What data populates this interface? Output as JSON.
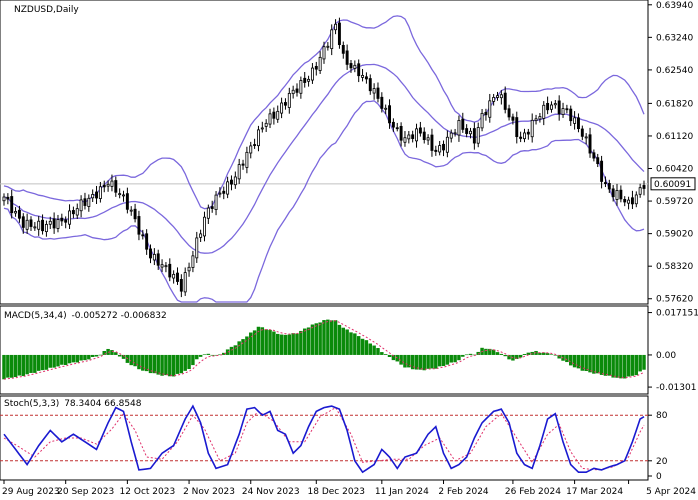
{
  "colors": {
    "background": "#ffffff",
    "frame": "#000000",
    "bollinger": "#7b68dd",
    "candle": "#000000",
    "macd_hist": "#0a8a0a",
    "macd_signal": "#e0306a",
    "stoch_main": "#1a1ad0",
    "stoch_signal": "#e0306a",
    "level_line": "#c03030",
    "price_line": "#c0c0c0",
    "current_price_bg": "#ffffff"
  },
  "chart_data": [
    {
      "type": "candlestick",
      "title": "NZDUSD,Daily",
      "ylim": [
        0.5755,
        0.64
      ],
      "y_ticks": [
        "0.63940",
        "0.63240",
        "0.62540",
        "0.61820",
        "0.61120",
        "0.60420",
        "0.59720",
        "0.59020",
        "0.58320",
        "0.57620"
      ],
      "y_tick_values": [
        0.6394,
        0.6324,
        0.6254,
        0.6182,
        0.6112,
        0.6042,
        0.5972,
        0.5902,
        0.5832,
        0.5762
      ],
      "current_price_label": "0.60091",
      "current_price": 0.60091,
      "x_ticks": [
        "29 Aug 2023",
        "20 Sep 2023",
        "12 Oct 2023",
        "2 Nov 2023",
        "24 Nov 2023",
        "18 Dec 2023",
        "11 Jan 2024",
        "2 Feb 2024",
        "26 Feb 2024",
        "17 Mar 2024",
        "5 Apr 2024"
      ],
      "x_tick_bar_index": [
        0,
        16,
        32,
        48,
        64,
        81,
        98,
        114,
        132,
        148,
        162
      ],
      "bars": 167,
      "close_path": [
        [
          0,
          0.5975
        ],
        [
          5,
          0.593
        ],
        [
          10,
          0.591
        ],
        [
          16,
          0.594
        ],
        [
          22,
          0.597
        ],
        [
          27,
          0.602
        ],
        [
          30,
          0.5985
        ],
        [
          34,
          0.593
        ],
        [
          38,
          0.586
        ],
        [
          42,
          0.582
        ],
        [
          46,
          0.579
        ],
        [
          48,
          0.584
        ],
        [
          52,
          0.593
        ],
        [
          56,
          0.599
        ],
        [
          60,
          0.603
        ],
        [
          64,
          0.608
        ],
        [
          68,
          0.615
        ],
        [
          72,
          0.6175
        ],
        [
          76,
          0.621
        ],
        [
          80,
          0.6255
        ],
        [
          84,
          0.631
        ],
        [
          86,
          0.6345
        ],
        [
          88,
          0.628
        ],
        [
          92,
          0.6255
        ],
        [
          96,
          0.62
        ],
        [
          100,
          0.615
        ],
        [
          104,
          0.6105
        ],
        [
          108,
          0.6115
        ],
        [
          112,
          0.6085
        ],
        [
          114,
          0.6095
        ],
        [
          118,
          0.613
        ],
        [
          122,
          0.611
        ],
        [
          124,
          0.616
        ],
        [
          128,
          0.62
        ],
        [
          130,
          0.617
        ],
        [
          134,
          0.611
        ],
        [
          138,
          0.6145
        ],
        [
          142,
          0.618
        ],
        [
          146,
          0.617
        ],
        [
          150,
          0.611
        ],
        [
          154,
          0.605
        ],
        [
          156,
          0.601
        ],
        [
          158,
          0.599
        ],
        [
          160,
          0.5975
        ],
        [
          162,
          0.596
        ],
        [
          164,
          0.5985
        ],
        [
          166,
          0.6015
        ]
      ]
    },
    {
      "type": "bar",
      "title": "MACD(5,34,4)",
      "values_label": "-0.005272 -0.006832",
      "ylim": [
        -0.015,
        0.019
      ],
      "y_ticks": [
        "0.017151",
        "0.00",
        "-0.01301"
      ],
      "y_tick_values": [
        0.017151,
        0.0,
        -0.01301
      ],
      "hist_path": [
        [
          0,
          -0.0095
        ],
        [
          5,
          -0.0085
        ],
        [
          10,
          -0.006
        ],
        [
          16,
          -0.004
        ],
        [
          22,
          -0.0015
        ],
        [
          25,
          0.0
        ],
        [
          27,
          0.0025
        ],
        [
          29,
          0.001
        ],
        [
          32,
          -0.003
        ],
        [
          36,
          -0.0065
        ],
        [
          40,
          -0.008
        ],
        [
          44,
          -0.0085
        ],
        [
          48,
          -0.006
        ],
        [
          50,
          -0.002
        ],
        [
          52,
          0.0005
        ],
        [
          56,
          0.0
        ],
        [
          60,
          0.004
        ],
        [
          64,
          0.009
        ],
        [
          66,
          0.0115
        ],
        [
          68,
          0.0105
        ],
        [
          72,
          0.008
        ],
        [
          76,
          0.009
        ],
        [
          80,
          0.012
        ],
        [
          84,
          0.0145
        ],
        [
          86,
          0.014
        ],
        [
          88,
          0.011
        ],
        [
          92,
          0.0075
        ],
        [
          96,
          0.004
        ],
        [
          100,
          -0.001
        ],
        [
          104,
          -0.005
        ],
        [
          108,
          -0.006
        ],
        [
          112,
          -0.0055
        ],
        [
          114,
          -0.0045
        ],
        [
          118,
          -0.002
        ],
        [
          120,
          0.0005
        ],
        [
          122,
          0.0
        ],
        [
          124,
          0.0025
        ],
        [
          126,
          0.0025
        ],
        [
          128,
          0.0015
        ],
        [
          130,
          -0.0005
        ],
        [
          132,
          -0.0025
        ],
        [
          134,
          -0.001
        ],
        [
          136,
          0.001
        ],
        [
          138,
          0.0015
        ],
        [
          142,
          0.0005
        ],
        [
          144,
          -0.0015
        ],
        [
          148,
          -0.005
        ],
        [
          152,
          -0.007
        ],
        [
          156,
          -0.0085
        ],
        [
          160,
          -0.0095
        ],
        [
          164,
          -0.008
        ],
        [
          166,
          -0.006
        ]
      ]
    },
    {
      "type": "line",
      "title": "Stoch(5,3,3)",
      "values_label": "78.3404 66.8548",
      "ylim": [
        0,
        100
      ],
      "y_ticks": [
        "80",
        "20",
        "0"
      ],
      "y_tick_values": [
        80,
        20,
        0
      ],
      "levels": [
        80,
        20
      ],
      "k_path": [
        [
          0,
          55
        ],
        [
          3,
          35
        ],
        [
          6,
          15
        ],
        [
          9,
          40
        ],
        [
          12,
          60
        ],
        [
          15,
          45
        ],
        [
          18,
          55
        ],
        [
          21,
          45
        ],
        [
          24,
          35
        ],
        [
          27,
          70
        ],
        [
          29,
          90
        ],
        [
          31,
          85
        ],
        [
          33,
          45
        ],
        [
          35,
          8
        ],
        [
          38,
          10
        ],
        [
          41,
          30
        ],
        [
          44,
          40
        ],
        [
          47,
          75
        ],
        [
          49,
          92
        ],
        [
          51,
          70
        ],
        [
          53,
          30
        ],
        [
          55,
          10
        ],
        [
          58,
          15
        ],
        [
          61,
          55
        ],
        [
          63,
          88
        ],
        [
          65,
          90
        ],
        [
          67,
          80
        ],
        [
          69,
          85
        ],
        [
          71,
          60
        ],
        [
          73,
          55
        ],
        [
          75,
          30
        ],
        [
          77,
          40
        ],
        [
          79,
          65
        ],
        [
          81,
          85
        ],
        [
          83,
          90
        ],
        [
          85,
          92
        ],
        [
          87,
          88
        ],
        [
          89,
          60
        ],
        [
          91,
          20
        ],
        [
          93,
          5
        ],
        [
          96,
          15
        ],
        [
          98,
          35
        ],
        [
          100,
          25
        ],
        [
          102,
          10
        ],
        [
          104,
          25
        ],
        [
          107,
          30
        ],
        [
          110,
          55
        ],
        [
          112,
          65
        ],
        [
          114,
          30
        ],
        [
          116,
          10
        ],
        [
          118,
          15
        ],
        [
          120,
          25
        ],
        [
          122,
          50
        ],
        [
          124,
          70
        ],
        [
          127,
          85
        ],
        [
          129,
          88
        ],
        [
          131,
          70
        ],
        [
          133,
          30
        ],
        [
          135,
          15
        ],
        [
          137,
          10
        ],
        [
          139,
          40
        ],
        [
          141,
          75
        ],
        [
          143,
          82
        ],
        [
          145,
          45
        ],
        [
          147,
          15
        ],
        [
          149,
          5
        ],
        [
          151,
          5
        ],
        [
          153,
          10
        ],
        [
          155,
          8
        ],
        [
          157,
          12
        ],
        [
          159,
          15
        ],
        [
          161,
          20
        ],
        [
          163,
          45
        ],
        [
          165,
          75
        ],
        [
          166,
          78
        ]
      ],
      "d_path": [
        [
          0,
          50
        ],
        [
          4,
          38
        ],
        [
          8,
          25
        ],
        [
          12,
          45
        ],
        [
          16,
          50
        ],
        [
          20,
          50
        ],
        [
          24,
          42
        ],
        [
          28,
          62
        ],
        [
          31,
          82
        ],
        [
          34,
          60
        ],
        [
          37,
          25
        ],
        [
          41,
          22
        ],
        [
          45,
          45
        ],
        [
          49,
          80
        ],
        [
          52,
          62
        ],
        [
          56,
          20
        ],
        [
          60,
          30
        ],
        [
          63,
          70
        ],
        [
          66,
          85
        ],
        [
          70,
          72
        ],
        [
          74,
          45
        ],
        [
          78,
          45
        ],
        [
          82,
          78
        ],
        [
          86,
          90
        ],
        [
          90,
          55
        ],
        [
          93,
          18
        ],
        [
          97,
          20
        ],
        [
          101,
          22
        ],
        [
          105,
          22
        ],
        [
          109,
          40
        ],
        [
          113,
          50
        ],
        [
          117,
          20
        ],
        [
          121,
          30
        ],
        [
          125,
          65
        ],
        [
          129,
          82
        ],
        [
          133,
          50
        ],
        [
          137,
          18
        ],
        [
          141,
          55
        ],
        [
          144,
          68
        ],
        [
          147,
          32
        ],
        [
          150,
          10
        ],
        [
          154,
          8
        ],
        [
          158,
          12
        ],
        [
          162,
          25
        ],
        [
          165,
          58
        ],
        [
          166,
          67
        ]
      ]
    }
  ]
}
